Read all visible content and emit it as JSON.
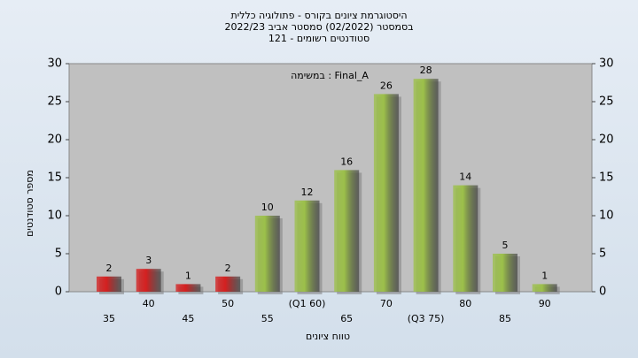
{
  "chart_data": {
    "type": "bar",
    "title": [
      "היסטוגרמת ציונים בקורס - פתולוגיה כללית",
      "בסמסטר  (02/2022)  סמסטר אביב 2022/23",
      "סטודנטים רשומים - 121"
    ],
    "annotation": "במשימה : Final_A",
    "x_label": "טווח ציונים",
    "y_label": "מספר סטודנטים",
    "categories": [
      "35",
      "40",
      "45",
      "50",
      "55",
      "(Q1 60)",
      "65",
      "70",
      "(Q3 75)",
      "80",
      "85",
      "90"
    ],
    "values": [
      2,
      3,
      1,
      2,
      10,
      12,
      16,
      26,
      28,
      14,
      5,
      1
    ],
    "colors": [
      "#d42020",
      "#d42020",
      "#d42020",
      "#d42020",
      "#9cc04a",
      "#9cc04a",
      "#9cc04a",
      "#9cc04a",
      "#9cc04a",
      "#9cc04a",
      "#9cc04a",
      "#9cc04a"
    ],
    "ylim": [
      0,
      30
    ],
    "yticks": [
      0,
      5,
      10,
      15,
      20,
      25,
      30
    ],
    "y2lim": [
      0,
      30
    ],
    "y2ticks": [
      0,
      5,
      10,
      15,
      20,
      25,
      30
    ]
  }
}
